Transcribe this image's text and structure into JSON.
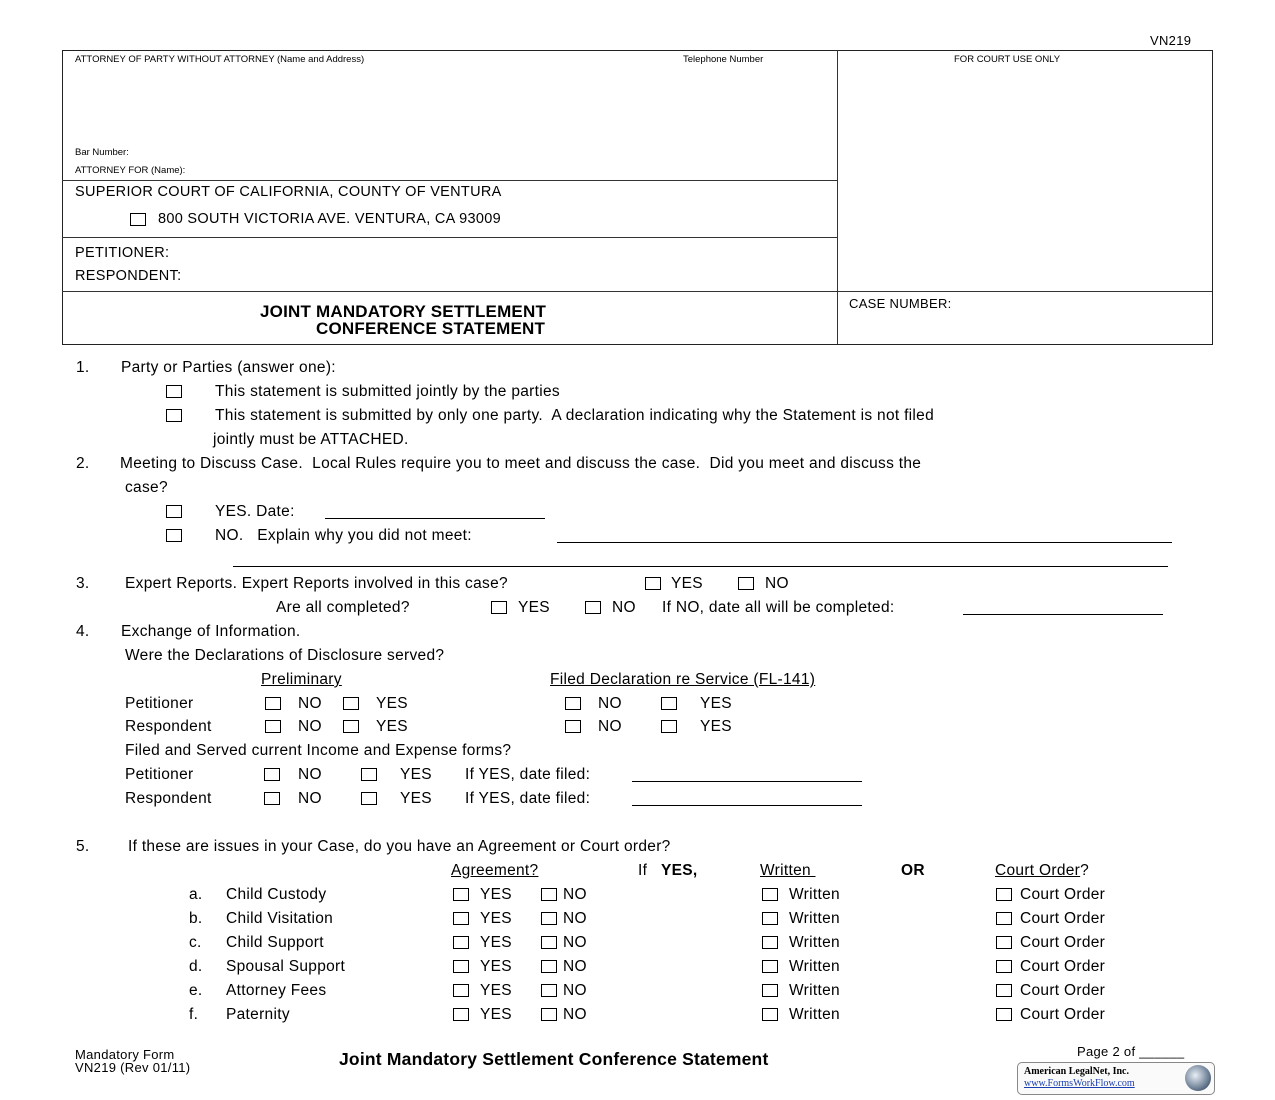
{
  "form_id": "VN219",
  "header": {
    "attorney_label": "ATTORNEY OF PARTY WITHOUT ATTORNEY (Name and Address)",
    "telephone_label": "Telephone Number",
    "court_use_label": "FOR COURT USE ONLY",
    "bar_number_label": "Bar Number:",
    "attorney_for_label": "ATTORNEY FOR (Name):",
    "court_name": "SUPERIOR COURT OF CALIFORNIA, COUNTY OF VENTURA",
    "court_address": "800 SOUTH VICTORIA AVE. VENTURA, CA 93009",
    "petitioner_label": "PETITIONER:",
    "respondent_label": "RESPONDENT:",
    "title_line1": "JOINT MANDATORY SETTLEMENT",
    "title_line2": "CONFERENCE STATEMENT",
    "case_number_label": "CASE NUMBER:"
  },
  "section1": {
    "num": "1.",
    "title": "Party or Parties (answer one):",
    "opt1": "This statement is submitted jointly by the parties",
    "opt2": "This statement is submitted by only one party.  A declaration indicating why the Statement is not filed",
    "opt2_cont": "jointly must be ATTACHED."
  },
  "section2": {
    "num": "2.",
    "title": "Meeting to Discuss Case.  Local Rules require you to meet and discuss the case.  Did you meet and discuss the",
    "title_cont": "case?",
    "yes_label": "YES. Date:",
    "no_label": "NO.   Explain why you did not meet:"
  },
  "section3": {
    "num": "3.",
    "question": "Expert Reports. Expert Reports involved in this case?",
    "yes": "YES",
    "no": "NO",
    "completed_question": "Are all completed?",
    "if_no_label": "If NO, date all will be completed:"
  },
  "section4": {
    "num": "4.",
    "title": "Exchange of Information.",
    "disclosure_question": "Were the Declarations of Disclosure served?",
    "col_preliminary": "Preliminary",
    "col_filed": "Filed Declaration re Service (FL-141)",
    "petitioner": "Petitioner",
    "respondent": "Respondent",
    "no": "NO",
    "yes": "YES",
    "income_question": "Filed and Served current Income and Expense forms?",
    "date_filed_label": "If YES, date filed:"
  },
  "section5": {
    "num": "5.",
    "question": "If these are issues in your Case, do you have an Agreement or Court order?",
    "col_agreement": "Agreement?",
    "if_label": "If",
    "yes_label": "YES,",
    "col_written": "Written ",
    "or_label": "OR",
    "col_court_order": "Court Order",
    "col_court_order_q": "?",
    "yes": "YES",
    "no": "NO",
    "written": "Written",
    "court_order": "Court Order",
    "rows": [
      {
        "letter": "a.",
        "label": "Child Custody"
      },
      {
        "letter": "b.",
        "label": "Child Visitation"
      },
      {
        "letter": "c.",
        "label": "Child Support"
      },
      {
        "letter": "d.",
        "label": "Spousal Support"
      },
      {
        "letter": "e.",
        "label": "Attorney Fees"
      },
      {
        "letter": "f.",
        "label": "Paternity"
      }
    ]
  },
  "footer": {
    "mandatory": "Mandatory Form",
    "form_rev": "VN219 (Rev 01/11)",
    "title": "Joint Mandatory Settlement Conference Statement",
    "page": "Page 2 of ______",
    "logo_company": "American LegalNet, Inc.",
    "logo_url": "www.FormsWorkFlow.com"
  }
}
